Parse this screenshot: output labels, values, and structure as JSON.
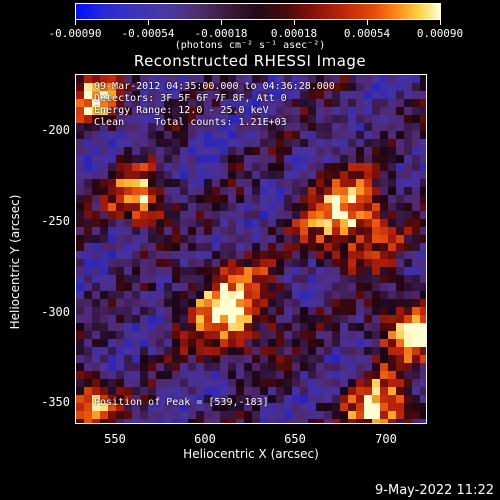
{
  "colorbar": {
    "ticks": [
      "-0.00090",
      "-0.00054",
      "-0.00018",
      "0.00018",
      "0.00054",
      "0.00090"
    ],
    "units": "(photons cm⁻² s⁻¹ asec⁻²)"
  },
  "title": "Reconstructed RHESSI Image",
  "info": {
    "line1": "09-Mar-2012 04:35:00.000 to 04:36:28.000",
    "line2": "Detectors: 3F 5F 6F 7F 8F, Att 0",
    "line3": "Energy Range: 12.0 - 25.0 keV",
    "line4": "Clean     Total counts: 1.21E+03",
    "peak": "Position of Peak = [539,-183]"
  },
  "axes": {
    "xlabel": "Heliocentric X (arcsec)",
    "ylabel": "Heliocentric Y (arcsec)",
    "xticks": [
      "550",
      "600",
      "650",
      "700"
    ],
    "yticks": [
      "-200",
      "-250",
      "-300",
      "-350"
    ]
  },
  "footer": "9-May-2022 11:22",
  "colors": {
    "background": "#000000",
    "text": "#ffffff"
  }
}
